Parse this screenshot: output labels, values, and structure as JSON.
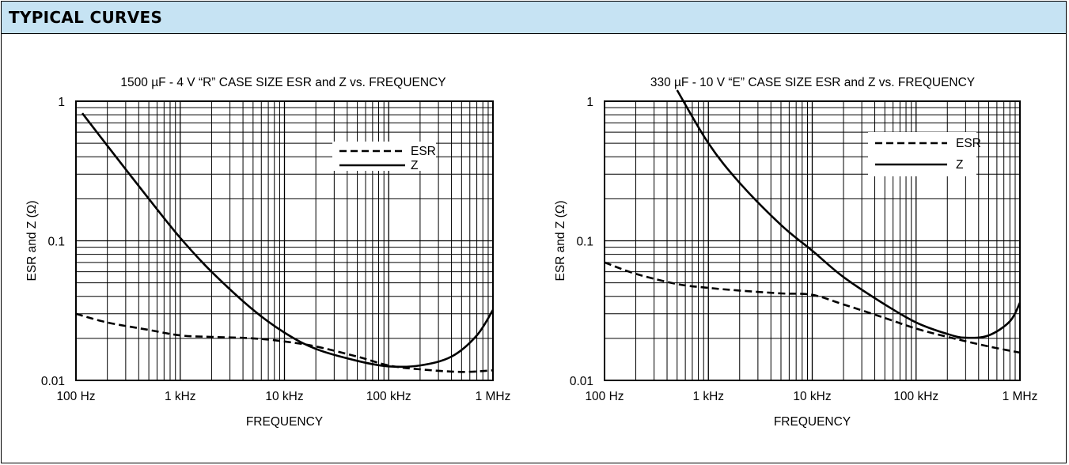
{
  "section": {
    "title": "TYPICAL CURVES"
  },
  "colors": {
    "header_bg": "#c6e3f3",
    "line": "#000000"
  },
  "chart_data": [
    {
      "type": "line",
      "title": "1500 µF - 4 V “R” CASE SIZE ESR and Z vs. FREQUENCY",
      "xlabel": "FREQUENCY",
      "ylabel": "ESR and Z (Ω)",
      "x_scale": "log",
      "y_scale": "log",
      "xlim": [
        100,
        1000000
      ],
      "ylim": [
        0.01,
        1
      ],
      "grid": true,
      "legend_position": "top-right",
      "x_ticks": [
        {
          "value": 100,
          "label": "100 Hz"
        },
        {
          "value": 1000,
          "label": "1 kHz"
        },
        {
          "value": 10000,
          "label": "10 kHz"
        },
        {
          "value": 100000,
          "label": "100 kHz"
        },
        {
          "value": 1000000,
          "label": "1 MHz"
        }
      ],
      "y_ticks": [
        {
          "value": 0.01,
          "label": "0.01"
        },
        {
          "value": 0.1,
          "label": "0.1"
        },
        {
          "value": 1,
          "label": "1"
        }
      ],
      "series": [
        {
          "name": "ESR",
          "style": "dashed",
          "x": [
            100,
            200,
            500,
            1000,
            2000,
            5000,
            10000,
            20000,
            50000,
            100000,
            200000,
            500000,
            1000000
          ],
          "y": [
            0.03,
            0.026,
            0.023,
            0.021,
            0.0205,
            0.02,
            0.019,
            0.0175,
            0.0148,
            0.0128,
            0.012,
            0.0115,
            0.0118
          ]
        },
        {
          "name": "Z",
          "style": "solid",
          "x": [
            115,
            200,
            500,
            1000,
            2000,
            5000,
            10000,
            20000,
            50000,
            100000,
            200000,
            400000,
            700000,
            1000000
          ],
          "y": [
            0.82,
            0.48,
            0.2,
            0.105,
            0.06,
            0.032,
            0.022,
            0.0168,
            0.0138,
            0.0126,
            0.0128,
            0.0148,
            0.021,
            0.032
          ]
        }
      ]
    },
    {
      "type": "line",
      "title": "330 µF - 10 V “E” CASE SIZE ESR and Z vs. FREQUENCY",
      "xlabel": "FREQUENCY",
      "ylabel": "ESR and Z (Ω)",
      "x_scale": "log",
      "y_scale": "log",
      "xlim": [
        100,
        1000000
      ],
      "ylim": [
        0.01,
        1
      ],
      "grid": true,
      "legend_position": "top-right",
      "x_ticks": [
        {
          "value": 100,
          "label": "100 Hz"
        },
        {
          "value": 1000,
          "label": "1 kHz"
        },
        {
          "value": 10000,
          "label": "10 kHz"
        },
        {
          "value": 100000,
          "label": "100 kHz"
        },
        {
          "value": 1000000,
          "label": "1 MHz"
        }
      ],
      "y_ticks": [
        {
          "value": 0.01,
          "label": "0.01"
        },
        {
          "value": 0.1,
          "label": "0.1"
        },
        {
          "value": 1,
          "label": "1"
        }
      ],
      "series": [
        {
          "name": "ESR",
          "style": "dashed",
          "x": [
            100,
            200,
            500,
            1000,
            2000,
            5000,
            10000,
            20000,
            50000,
            100000,
            200000,
            500000,
            1000000
          ],
          "y": [
            0.07,
            0.058,
            0.049,
            0.046,
            0.044,
            0.042,
            0.041,
            0.035,
            0.028,
            0.0235,
            0.0205,
            0.0175,
            0.0158
          ]
        },
        {
          "name": "Z",
          "style": "solid",
          "x": [
            500,
            1000,
            2000,
            5000,
            10000,
            20000,
            50000,
            100000,
            200000,
            300000,
            500000,
            800000,
            1000000
          ],
          "y": [
            1.2,
            0.5,
            0.26,
            0.13,
            0.085,
            0.055,
            0.035,
            0.026,
            0.0215,
            0.0202,
            0.021,
            0.0265,
            0.036
          ]
        }
      ]
    }
  ]
}
